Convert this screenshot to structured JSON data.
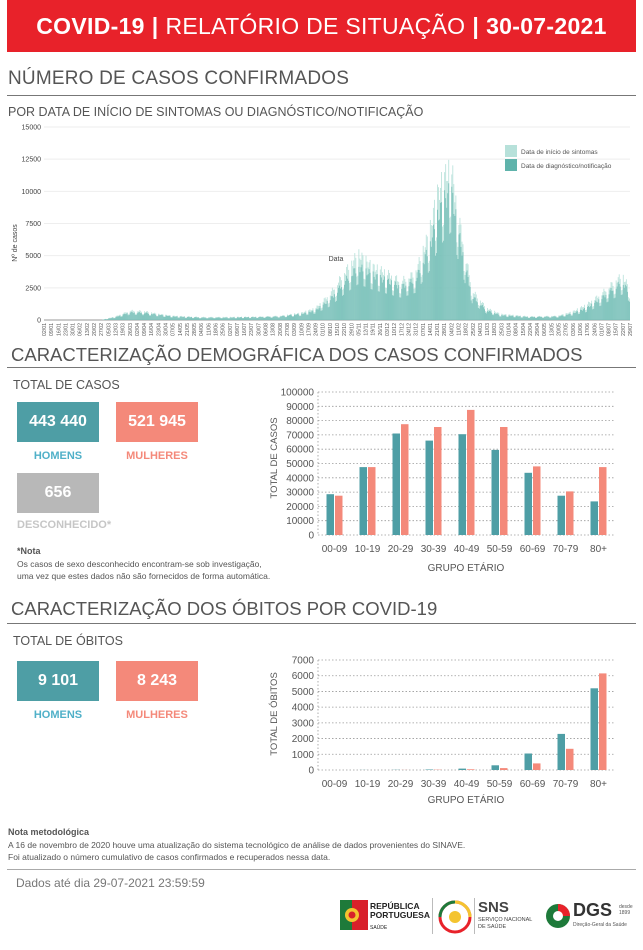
{
  "banner": {
    "title": "COVID-19",
    "subtitle": "RELATÓRIO DE SITUAÇÃO",
    "date": "30-07-2021"
  },
  "cases": {
    "title": "NÚMERO DE CASOS CONFIRMADOS",
    "subtitle": "POR DATA DE INÍCIO DE SINTOMAS OU DIAGNÓSTICO/NOTIFICAÇÃO"
  },
  "demographics": {
    "title": "CARACTERIZAÇÃO DEMOGRÁFICA DOS CASOS CONFIRMADOS",
    "total_label": "TOTAL DE CASOS",
    "men_value": "443 440",
    "men_label": "HOMENS",
    "women_value": "521 945",
    "women_label": "MULHERES",
    "unknown_value": "656",
    "unknown_label": "DESCONHECIDO*",
    "note_title": "*Nota",
    "note_line1": "Os casos de sexo desconhecido encontram-se sob investigação,",
    "note_line2": "uma vez que estes dados não são fornecidos de forma automática."
  },
  "deaths": {
    "title": "CARACTERIZAÇÃO DOS ÓBITOS POR COVID-19",
    "total_label": "TOTAL DE ÓBITOS",
    "men_value": "9 101",
    "men_label": "HOMENS",
    "women_value": "8 243",
    "women_label": "MULHERES"
  },
  "methodology": {
    "title": "Nota metodológica",
    "line1": "A 16 de novembro de 2020 houve uma atualização do sistema tecnológico de análise de dados provenientes do SINAVE.",
    "line2": "Foi atualizado o número cumulativo de casos confirmados e recuperados nessa data."
  },
  "footer": {
    "data_date": "Dados até dia 29-07-2021 23:59:59"
  },
  "logos": {
    "rp_line1": "REPÚBLICA",
    "rp_line2": "PORTUGUESA",
    "rp_line3": "SAÚDE",
    "sns_title": "SNS",
    "sns_line1": "SERVIÇO NACIONAL",
    "sns_line2": "DE SAÚDE",
    "dgs_title": "DGS",
    "dgs_small1": "desde",
    "dgs_small2": "1899",
    "dgs_line": "Direção-Geral da Saúde"
  },
  "colors": {
    "men": "#4e9ea5",
    "women": "#f4897a",
    "unknown": "#b8b8b8",
    "banner": "#e8222a",
    "teal_light": "#b7e1da",
    "teal_dark": "#5fb3ab"
  },
  "chart_data": [
    {
      "type": "area",
      "title": "",
      "xlabel": "Data",
      "ylabel": "Nº de casos",
      "ylim": [
        0,
        15000
      ],
      "yticks": [
        "0",
        "2500",
        "5000",
        "7500",
        "10000",
        "12500",
        "15000"
      ],
      "xtick_labels": [
        "02/01",
        "09/01",
        "16/01",
        "23/01",
        "30/01",
        "06/02",
        "13/02",
        "20/02",
        "27/02",
        "05/03",
        "12/03",
        "19/03",
        "26/03",
        "02/04",
        "09/04",
        "16/04",
        "23/04",
        "30/04",
        "07/05",
        "14/05",
        "21/05",
        "28/05",
        "04/06",
        "11/06",
        "18/06",
        "25/06",
        "02/07",
        "09/07",
        "16/07",
        "23/07",
        "30/07",
        "06/08",
        "13/08",
        "20/08",
        "27/08",
        "03/09",
        "10/09",
        "17/09",
        "24/09",
        "01/10",
        "08/10",
        "15/10",
        "22/10",
        "29/10",
        "05/11",
        "12/11",
        "19/11",
        "26/11",
        "03/12",
        "10/12",
        "17/12",
        "24/12",
        "31/12",
        "07/01",
        "14/01",
        "21/01",
        "28/01",
        "04/02",
        "11/02",
        "18/02",
        "25/02",
        "04/03",
        "11/03",
        "18/03",
        "25/03",
        "01/04",
        "08/04",
        "15/04",
        "22/04",
        "29/04",
        "06/05",
        "13/05",
        "20/05",
        "27/05",
        "03/06",
        "10/06",
        "17/06",
        "24/06",
        "01/07",
        "08/07",
        "15/07",
        "22/07",
        "29/07"
      ],
      "legend_position": "top-right",
      "series": [
        {
          "name": "Data de início de sintomas",
          "color": "#b7e1da",
          "anchors": [
            [
              0,
              0
            ],
            [
              8,
              0
            ],
            [
              10,
              300
            ],
            [
              12,
              800
            ],
            [
              14,
              750
            ],
            [
              16,
              500
            ],
            [
              18,
              350
            ],
            [
              22,
              250
            ],
            [
              26,
              250
            ],
            [
              30,
              280
            ],
            [
              33,
              350
            ],
            [
              36,
              600
            ],
            [
              38,
              1000
            ],
            [
              40,
              2200
            ],
            [
              42,
              4000
            ],
            [
              44,
              5600
            ],
            [
              46,
              4500
            ],
            [
              48,
              4000
            ],
            [
              50,
              3300
            ],
            [
              52,
              4000
            ],
            [
              54,
              7500
            ],
            [
              55,
              10500
            ],
            [
              56,
              12000
            ],
            [
              57,
              13000
            ],
            [
              58,
              9000
            ],
            [
              59,
              5500
            ],
            [
              60,
              2500
            ],
            [
              62,
              1000
            ],
            [
              64,
              500
            ],
            [
              68,
              300
            ],
            [
              72,
              350
            ],
            [
              74,
              700
            ],
            [
              76,
              1300
            ],
            [
              78,
              2200
            ],
            [
              80,
              3300
            ],
            [
              81,
              3800
            ],
            [
              82,
              2700
            ]
          ]
        },
        {
          "name": "Data de diagnóstico/notificação",
          "color": "#5fb3ab",
          "anchors": [
            [
              0,
              0
            ],
            [
              8,
              0
            ],
            [
              10,
              250
            ],
            [
              12,
              650
            ],
            [
              14,
              600
            ],
            [
              16,
              450
            ],
            [
              18,
              300
            ],
            [
              22,
              200
            ],
            [
              26,
              200
            ],
            [
              30,
              250
            ],
            [
              33,
              300
            ],
            [
              36,
              500
            ],
            [
              38,
              800
            ],
            [
              40,
              1700
            ],
            [
              42,
              3200
            ],
            [
              44,
              4500
            ],
            [
              46,
              3800
            ],
            [
              48,
              3300
            ],
            [
              50,
              2800
            ],
            [
              52,
              3400
            ],
            [
              54,
              6200
            ],
            [
              55,
              8500
            ],
            [
              56,
              10000
            ],
            [
              57,
              11000
            ],
            [
              58,
              7500
            ],
            [
              59,
              4500
            ],
            [
              60,
              2000
            ],
            [
              62,
              800
            ],
            [
              64,
              400
            ],
            [
              68,
              250
            ],
            [
              72,
              300
            ],
            [
              74,
              550
            ],
            [
              76,
              1000
            ],
            [
              78,
              1800
            ],
            [
              80,
              2800
            ],
            [
              81,
              3200
            ],
            [
              82,
              2300
            ]
          ]
        }
      ]
    },
    {
      "type": "bar",
      "title": "",
      "xlabel": "GRUPO ETÁRIO",
      "ylabel": "TOTAL DE CASOS",
      "ylim": [
        0,
        100000
      ],
      "yticks": [
        "0",
        "10000",
        "20000",
        "30000",
        "40000",
        "50000",
        "60000",
        "70000",
        "80000",
        "90000",
        "100000"
      ],
      "categories": [
        "00-09",
        "10-19",
        "20-29",
        "30-39",
        "40-49",
        "50-59",
        "60-69",
        "70-79",
        "80+"
      ],
      "series": [
        {
          "name": "HOMENS",
          "color": "#4e9ea5",
          "values": [
            28500,
            47500,
            71000,
            66000,
            70500,
            59500,
            43500,
            27500,
            23500
          ]
        },
        {
          "name": "MULHERES",
          "color": "#f4897a",
          "values": [
            27500,
            47500,
            77500,
            75500,
            87500,
            75500,
            48000,
            30500,
            47500
          ]
        }
      ]
    },
    {
      "type": "bar",
      "title": "",
      "xlabel": "GRUPO ETÁRIO",
      "ylabel": "TOTAL DE ÓBITOS",
      "ylim": [
        0,
        7000
      ],
      "yticks": [
        "0",
        "1000",
        "2000",
        "3000",
        "4000",
        "5000",
        "6000",
        "7000"
      ],
      "categories": [
        "00-09",
        "10-19",
        "20-29",
        "30-39",
        "40-49",
        "50-59",
        "60-69",
        "70-79",
        "80+"
      ],
      "series": [
        {
          "name": "HOMENS",
          "color": "#4e9ea5",
          "values": [
            3,
            5,
            12,
            30,
            90,
            300,
            1050,
            2300,
            5200
          ]
        },
        {
          "name": "MULHERES",
          "color": "#f4897a",
          "values": [
            2,
            2,
            8,
            20,
            45,
            120,
            420,
            1350,
            6150
          ]
        }
      ]
    }
  ]
}
